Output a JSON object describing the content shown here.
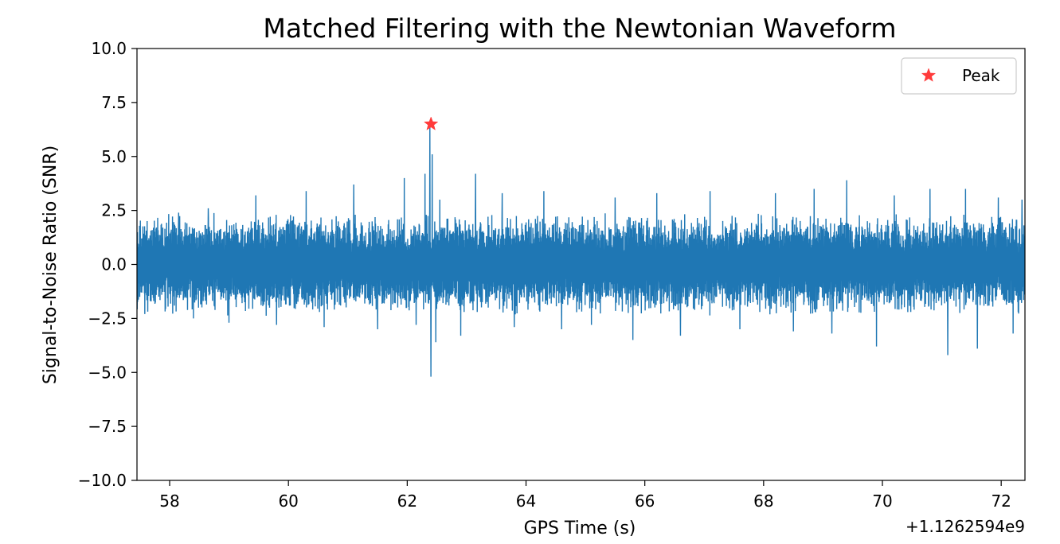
{
  "chart_data": {
    "type": "line",
    "title": "Matched Filtering with the Newtonian Waveform",
    "xlabel": "GPS Time (s)",
    "ylabel": "Signal-to-Noise Ratio (SNR)",
    "x_offset_label": "+1.1262594e9",
    "xlim": [
      57.45,
      72.4
    ],
    "ylim": [
      -10.0,
      10.0
    ],
    "x_ticks": [
      58,
      60,
      62,
      64,
      66,
      68,
      70,
      72
    ],
    "x_tick_labels": [
      "58",
      "60",
      "62",
      "64",
      "66",
      "68",
      "70",
      "72"
    ],
    "y_ticks": [
      10.0,
      7.5,
      5.0,
      2.5,
      0.0,
      -2.5,
      -5.0,
      -7.5,
      -10.0
    ],
    "y_tick_labels": [
      "10.0",
      "7.5",
      "5.0",
      "2.5",
      "0.0",
      "−2.5",
      "−5.0",
      "−7.5",
      "−10.0"
    ],
    "grid": false,
    "legend": {
      "placement": "upper-right",
      "entries": [
        "Peak"
      ]
    },
    "series": [
      {
        "name": "",
        "color": "#1f77b4",
        "x_start": 57.45,
        "x_end": 72.4,
        "typical_range": [
          -2.4,
          2.4
        ],
        "spikes": [
          {
            "x": 58.15,
            "y": 2.4
          },
          {
            "x": 58.4,
            "y": -2.5
          },
          {
            "x": 58.65,
            "y": 2.6
          },
          {
            "x": 59.0,
            "y": -2.7
          },
          {
            "x": 59.45,
            "y": 3.2
          },
          {
            "x": 59.8,
            "y": -2.8
          },
          {
            "x": 60.3,
            "y": 3.4
          },
          {
            "x": 60.6,
            "y": -2.9
          },
          {
            "x": 61.1,
            "y": 3.7
          },
          {
            "x": 61.5,
            "y": -3.0
          },
          {
            "x": 61.95,
            "y": 4.0
          },
          {
            "x": 62.15,
            "y": -2.8
          },
          {
            "x": 62.3,
            "y": 4.2
          },
          {
            "x": 62.38,
            "y": 6.4
          },
          {
            "x": 62.4,
            "y": -5.2
          },
          {
            "x": 62.42,
            "y": 5.1
          },
          {
            "x": 62.48,
            "y": -3.6
          },
          {
            "x": 62.55,
            "y": 3.0
          },
          {
            "x": 62.9,
            "y": -3.3
          },
          {
            "x": 63.15,
            "y": 4.2
          },
          {
            "x": 63.6,
            "y": 3.3
          },
          {
            "x": 63.8,
            "y": -2.9
          },
          {
            "x": 64.3,
            "y": 3.4
          },
          {
            "x": 64.6,
            "y": -3.0
          },
          {
            "x": 65.1,
            "y": -2.8
          },
          {
            "x": 65.5,
            "y": 3.1
          },
          {
            "x": 65.8,
            "y": -3.5
          },
          {
            "x": 66.2,
            "y": 3.3
          },
          {
            "x": 66.6,
            "y": -3.3
          },
          {
            "x": 67.1,
            "y": 3.4
          },
          {
            "x": 67.6,
            "y": -3.0
          },
          {
            "x": 68.2,
            "y": 3.3
          },
          {
            "x": 68.5,
            "y": -3.1
          },
          {
            "x": 68.85,
            "y": 3.5
          },
          {
            "x": 69.15,
            "y": -3.2
          },
          {
            "x": 69.4,
            "y": 3.9
          },
          {
            "x": 69.9,
            "y": -3.8
          },
          {
            "x": 70.2,
            "y": 3.2
          },
          {
            "x": 70.8,
            "y": 3.5
          },
          {
            "x": 71.1,
            "y": -4.2
          },
          {
            "x": 71.4,
            "y": 3.5
          },
          {
            "x": 71.6,
            "y": -3.9
          },
          {
            "x": 71.95,
            "y": 3.1
          },
          {
            "x": 72.2,
            "y": -3.2
          },
          {
            "x": 72.35,
            "y": 3.0
          }
        ]
      },
      {
        "name": "Peak",
        "type": "scatter",
        "marker": "star",
        "color": "#ff3b3b",
        "x": [
          62.4
        ],
        "y": [
          6.5
        ]
      }
    ]
  }
}
